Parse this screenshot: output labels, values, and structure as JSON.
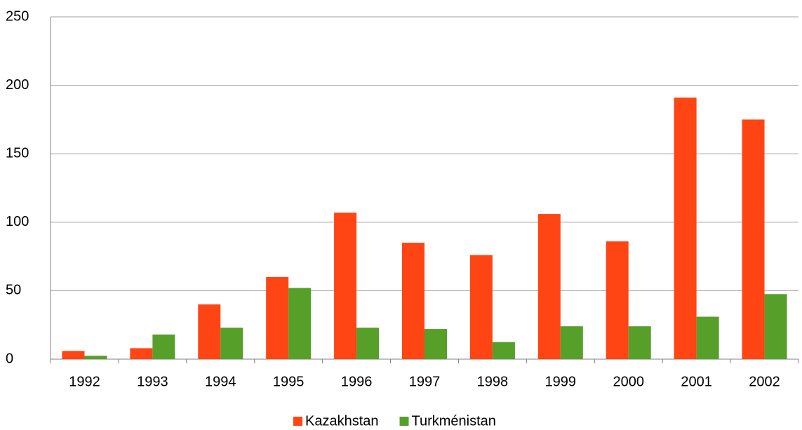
{
  "chart_data": {
    "type": "bar",
    "categories": [
      "1992",
      "1993",
      "1994",
      "1995",
      "1996",
      "1997",
      "1998",
      "1999",
      "2000",
      "2001",
      "2002"
    ],
    "series": [
      {
        "name": "Kazakhstan",
        "color": "#ff4513",
        "values": [
          6,
          8,
          40,
          60,
          107,
          85,
          76,
          106,
          86,
          191,
          175
        ]
      },
      {
        "name": "Turkménistan",
        "color": "#56a02a",
        "values": [
          2.5,
          18,
          23,
          52,
          23,
          22,
          12.5,
          24,
          24,
          31,
          47.5
        ]
      }
    ],
    "ylim": [
      0,
      250
    ],
    "yticks": [
      0,
      50,
      100,
      150,
      200,
      250
    ],
    "grid": true,
    "legend": "bottom"
  }
}
